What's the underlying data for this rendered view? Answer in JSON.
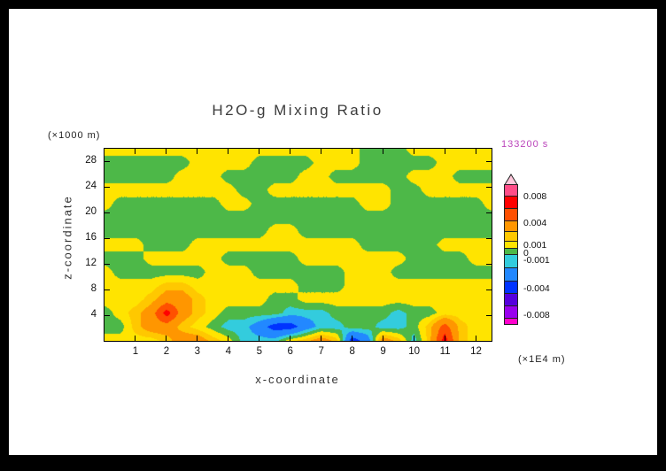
{
  "window": {
    "frame_color": "#000000",
    "page_color": "#ffffff"
  },
  "chart_data": {
    "type": "heatmap",
    "subtype": "filled_contour",
    "title": "H2O-g Mixing Ratio",
    "timestamp_label": "133200 s",
    "timestamp_color": "#bb44bb",
    "xlabel": "x-coordinate",
    "ylabel": "z-coordinate",
    "x_unit_label": "(×1E4 m)",
    "y_unit_label": "(×1000 m)",
    "x_range": [
      0,
      12.5
    ],
    "y_range": [
      0,
      30
    ],
    "x_ticks": [
      1,
      2,
      3,
      4,
      5,
      6,
      7,
      8,
      9,
      10,
      11,
      12
    ],
    "y_ticks": [
      4,
      8,
      12,
      16,
      20,
      24,
      28
    ],
    "grid_on": false,
    "legend_position": "right-colorbar",
    "levels": [
      -0.01,
      -0.008,
      -0.006,
      -0.004,
      -0.002,
      -0.001,
      0,
      0.001,
      0.002,
      0.004,
      0.006,
      0.008,
      0.01
    ],
    "band_colors": [
      "#ff00cc",
      "#9900ee",
      "#5500dd",
      "#0033ff",
      "#2288ff",
      "#33ccdd",
      "#4db848",
      "#ffe400",
      "#ffc800",
      "#ff9600",
      "#ff5000",
      "#ff0000",
      "#ff4d88",
      "#ffc8dc"
    ],
    "colorbar": {
      "labels": [
        "0.008",
        "0.004",
        "0.001",
        "0",
        "-0.001",
        "-0.004",
        "-0.008"
      ],
      "label_boundary_index": [
        0,
        2,
        4,
        5,
        6,
        8,
        10
      ],
      "cell_heights": [
        14,
        15,
        15,
        13,
        12,
        9,
        8,
        16,
        16,
        15,
        15,
        15,
        8
      ]
    },
    "grid_x": [
      0,
      0.5,
      1,
      1.5,
      2,
      2.5,
      3,
      3.5,
      4,
      4.5,
      5,
      5.5,
      6,
      6.5,
      7,
      7.5,
      8,
      8.5,
      9,
      9.5,
      10,
      10.5,
      11,
      11.5,
      12,
      12.5
    ],
    "grid_z": [
      29,
      27,
      25,
      23,
      21,
      19,
      17,
      15,
      13,
      11,
      9,
      7,
      5,
      3,
      1
    ],
    "grid": [
      [
        0.0005,
        0.0005,
        0.0005,
        0.0005,
        0.0005,
        0.0005,
        0.0005,
        0.0005,
        0.0005,
        0.0005,
        0.0005,
        0.0005,
        0.0005,
        0.0005,
        0.0005,
        0.0005,
        0.0005,
        -0.0005,
        -0.0005,
        -0.0005,
        0.0005,
        0.0005,
        0.0005,
        0.0005,
        0.0005,
        0.0005
      ],
      [
        -0.0005,
        -0.0005,
        -0.0005,
        -0.0005,
        -0.0005,
        -0.0005,
        0.0005,
        0.0005,
        0.0005,
        0.0005,
        -0.0005,
        -0.0005,
        -0.0005,
        -0.0005,
        0.0005,
        0.0005,
        0.0005,
        -0.0005,
        -0.0005,
        -0.0005,
        -0.0005,
        -0.0005,
        0.0005,
        0.0005,
        0.0005,
        0.0005
      ],
      [
        -0.0005,
        -0.0005,
        -0.0005,
        -0.0005,
        -0.0005,
        0.0005,
        0.0005,
        0.0005,
        -0.0005,
        -0.0005,
        -0.0005,
        -0.0005,
        -0.0005,
        0.0005,
        0.0005,
        -0.0005,
        -0.0005,
        -0.0005,
        -0.0005,
        -0.0005,
        0.0005,
        0.0005,
        0.0005,
        -0.0005,
        -0.0005,
        -0.0005
      ],
      [
        0.0005,
        0.0005,
        0.0005,
        0.0005,
        0.0005,
        0.0005,
        0.0005,
        0.0005,
        0.0005,
        -0.0005,
        -0.0005,
        0.0005,
        0.0005,
        0.0005,
        0.0005,
        0.0005,
        0.0005,
        0.0005,
        0.0005,
        -0.0005,
        -0.0005,
        0.0005,
        0.0005,
        0.0005,
        0.0005,
        0.0005
      ],
      [
        0.0005,
        -0.0005,
        -0.0005,
        -0.0005,
        -0.0005,
        -0.0005,
        -0.0005,
        -0.0005,
        0.0005,
        0.0005,
        -0.0005,
        -0.0005,
        -0.0005,
        -0.0005,
        -0.0005,
        -0.0005,
        -0.0005,
        0.0005,
        0.0005,
        -0.0005,
        -0.0005,
        -0.0005,
        -0.0005,
        -0.0005,
        -0.0005,
        0.0005
      ],
      [
        -0.0005,
        -0.0005,
        -0.0005,
        -0.0005,
        -0.0005,
        -0.0005,
        -0.0005,
        -0.0005,
        -0.0005,
        -0.0005,
        -0.0005,
        -0.0005,
        -0.0005,
        -0.0005,
        -0.0005,
        -0.0005,
        -0.0005,
        -0.0005,
        -0.0005,
        -0.0005,
        -0.0005,
        -0.0005,
        -0.0005,
        -0.0005,
        -0.0005,
        -0.0005
      ],
      [
        -0.0005,
        -0.0005,
        -0.0005,
        -0.0005,
        -0.0005,
        -0.0005,
        -0.0005,
        -0.0005,
        -0.0005,
        -0.0005,
        -0.0005,
        0.0005,
        0.0005,
        -0.0005,
        -0.0005,
        -0.0005,
        -0.0005,
        -0.0005,
        -0.0005,
        -0.0005,
        -0.0005,
        -0.0005,
        -0.0005,
        -0.0005,
        -0.0005,
        -0.0005
      ],
      [
        0.0005,
        0.0005,
        0.0005,
        -0.0005,
        -0.0005,
        -0.0005,
        0.0005,
        0.0005,
        0.0005,
        0.0005,
        0.0005,
        0.0005,
        0.0005,
        0.0005,
        0.0005,
        0.0005,
        0.0005,
        -0.0005,
        -0.0005,
        -0.0005,
        -0.0005,
        -0.0005,
        0.0005,
        0.0005,
        0.0005,
        0.0005
      ],
      [
        -0.0005,
        -0.0005,
        -0.0005,
        0.0005,
        0.0005,
        0.0005,
        0.0005,
        0.0005,
        -0.0005,
        -0.0005,
        -0.0005,
        -0.0005,
        -0.0005,
        0.0005,
        0.0005,
        0.0005,
        0.0005,
        0.0005,
        0.0005,
        0.0005,
        -0.0005,
        -0.0005,
        -0.0005,
        -0.0005,
        0.0005,
        0.0005
      ],
      [
        0.0005,
        -0.0005,
        -0.0005,
        -0.0005,
        -0.0005,
        -0.0005,
        -0.0005,
        0.0005,
        0.0005,
        0.0005,
        -0.0005,
        -0.0005,
        -0.0005,
        -0.0005,
        -0.0005,
        -0.0005,
        0.0005,
        0.0005,
        0.0005,
        -0.0005,
        -0.0005,
        -0.0005,
        -0.0005,
        -0.0005,
        -0.0005,
        -0.0005
      ],
      [
        0.0005,
        0.0005,
        0.0005,
        0.0005,
        0.0015,
        0.0015,
        0.0005,
        0.0005,
        0.0005,
        0.0005,
        0.0005,
        0.0005,
        0.0005,
        -0.0005,
        -0.0005,
        -0.0005,
        0.0005,
        0.0005,
        0.0005,
        0.0005,
        0.0005,
        0.0005,
        0.0005,
        0.0005,
        0.0005,
        0.0005
      ],
      [
        0.0005,
        0.0005,
        0.0005,
        0.0015,
        0.003,
        0.003,
        0.0015,
        0.0005,
        0.0005,
        0.0005,
        0.0005,
        -0.0005,
        -0.0005,
        0.0005,
        0.0005,
        0.0005,
        0.0005,
        0.0005,
        0.0005,
        0.0005,
        0.0005,
        0.0005,
        0.0005,
        0.0005,
        0.0005,
        0.0005
      ],
      [
        -0.0005,
        0.0005,
        0.0015,
        0.003,
        0.007,
        0.003,
        0.0015,
        0.0005,
        -0.0005,
        -0.0005,
        -0.0005,
        -0.0005,
        -0.0015,
        -0.0015,
        -0.0015,
        -0.0005,
        -0.0005,
        -0.0005,
        -0.0005,
        -0.0015,
        -0.0005,
        -0.0005,
        0.0005,
        0.0005,
        0.0005,
        0.0005
      ],
      [
        -0.0005,
        -0.0005,
        0.0015,
        0.003,
        0.003,
        0.0015,
        0.0005,
        -0.0005,
        -0.0015,
        -0.0015,
        -0.003,
        -0.005,
        -0.005,
        -0.003,
        -0.0015,
        -0.0015,
        -0.0005,
        -0.0005,
        -0.0015,
        -0.0015,
        -0.0005,
        0.0015,
        0.005,
        0.0015,
        0.0005,
        0.0005
      ],
      [
        0.0005,
        0.0005,
        0.0005,
        0.0005,
        0.0015,
        0.003,
        0.003,
        0.0015,
        0.0005,
        -0.0015,
        -0.0015,
        -0.0015,
        0.0005,
        0.0015,
        0.003,
        0.0015,
        -0.005,
        -0.003,
        0.003,
        0.0015,
        -0.0015,
        0.0015,
        0.007,
        0.0015,
        0.0005,
        0.0005
      ]
    ]
  }
}
